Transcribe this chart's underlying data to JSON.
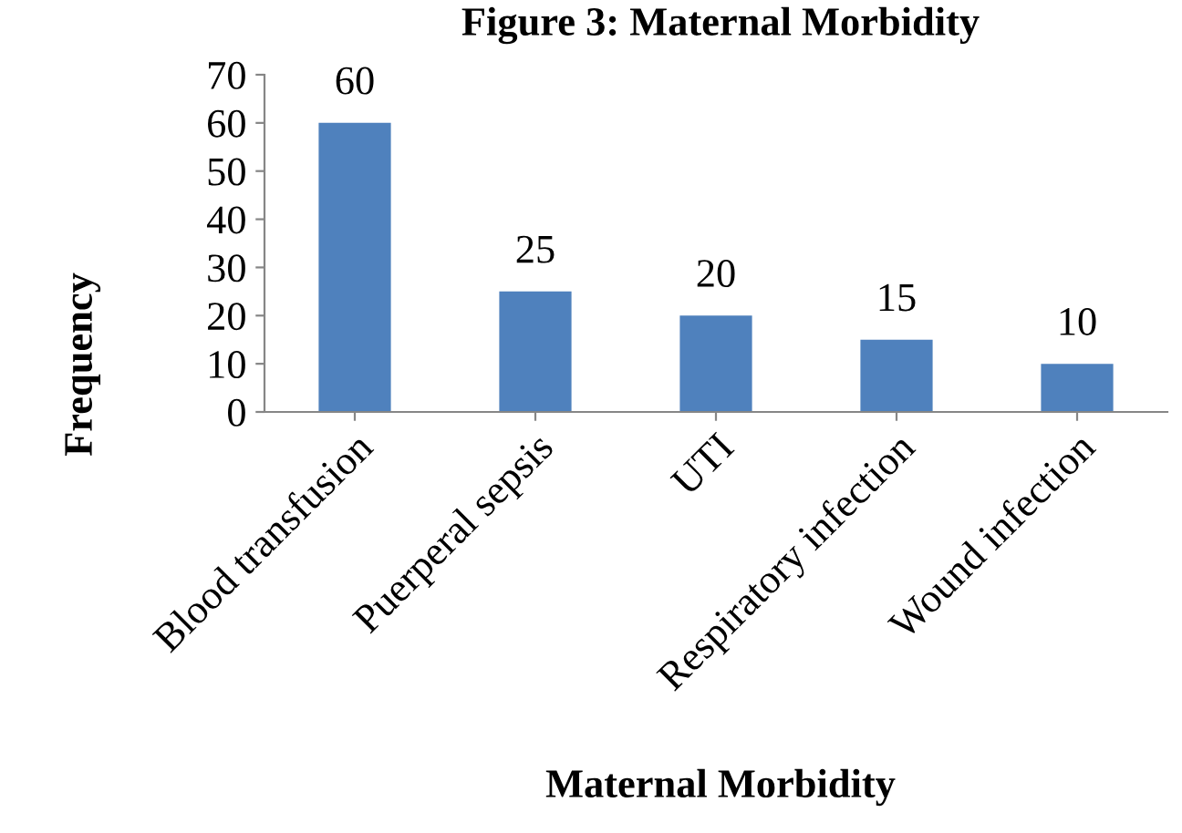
{
  "chart_data": {
    "type": "bar",
    "title": "Figure 3: Maternal Morbidity",
    "xlabel": "Maternal Morbidity",
    "ylabel": "Frequency",
    "categories": [
      "Blood transfusion",
      "Puerperal sepsis",
      "UTI",
      "Respiratory infection",
      "Wound infection"
    ],
    "values": [
      60,
      25,
      20,
      15,
      10
    ],
    "color": "#4f81bd",
    "ylim": [
      0,
      70
    ],
    "yticks": [
      0,
      10,
      20,
      30,
      40,
      50,
      60,
      70
    ],
    "grid": false,
    "data_labels": true
  }
}
